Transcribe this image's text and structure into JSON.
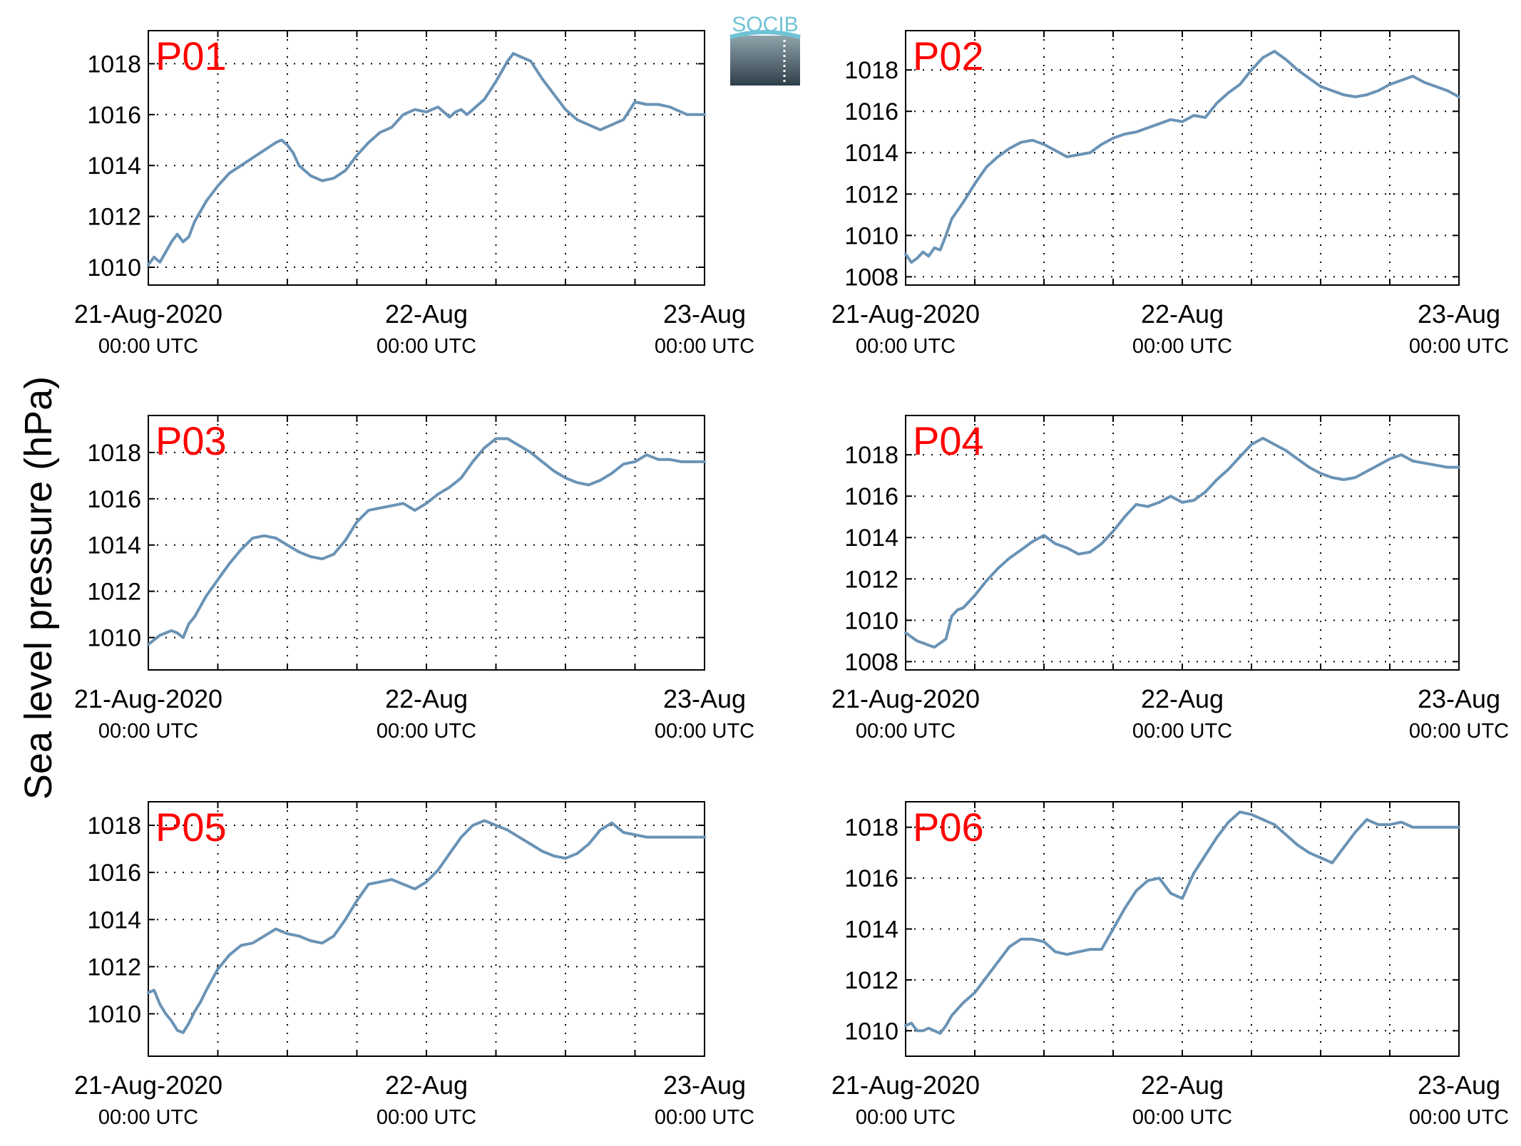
{
  "figure": {
    "ylabel": "Sea level pressure (hPa)",
    "logo_text": "SOCIB",
    "line_color": "#6a93b5",
    "panel_label_color": "#ff0000"
  },
  "chart_data": [
    {
      "type": "line",
      "label": "P01",
      "ylim": [
        1009.3,
        1019.3
      ],
      "yticks": [
        1010,
        1012,
        1014,
        1016,
        1018
      ],
      "x_major_ticks": [
        {
          "x": 0,
          "line1": "21-Aug-2020",
          "line2": "00:00 UTC"
        },
        {
          "x": 24,
          "line1": "22-Aug",
          "line2": "00:00 UTC"
        },
        {
          "x": 48,
          "line1": "23-Aug",
          "line2": "00:00 UTC"
        }
      ],
      "xlim": [
        0,
        48
      ],
      "xgrid": [
        6,
        12,
        18,
        24,
        30,
        36,
        42
      ],
      "grid": true,
      "x": [
        0,
        0.5,
        1,
        1.5,
        2,
        2.5,
        3,
        3.5,
        4,
        5,
        6,
        7,
        8,
        9,
        10,
        11,
        11.5,
        12,
        12.5,
        13,
        14,
        15,
        16,
        17,
        18,
        19,
        20,
        21,
        22,
        23,
        24,
        25,
        26,
        26.5,
        27,
        27.5,
        28,
        29,
        30,
        31,
        31.5,
        32,
        33,
        34,
        35,
        36,
        37,
        38,
        39,
        40,
        41,
        42,
        43,
        44,
        45,
        46,
        46.5,
        47,
        48
      ],
      "y": [
        1010.1,
        1010.4,
        1010.2,
        1010.6,
        1011.0,
        1011.3,
        1011.0,
        1011.2,
        1011.8,
        1012.6,
        1013.2,
        1013.7,
        1014.0,
        1014.3,
        1014.6,
        1014.9,
        1015.0,
        1014.8,
        1014.5,
        1014.0,
        1013.6,
        1013.4,
        1013.5,
        1013.8,
        1014.4,
        1014.9,
        1015.3,
        1015.5,
        1016.0,
        1016.2,
        1016.1,
        1016.3,
        1015.9,
        1016.1,
        1016.2,
        1016.0,
        1016.2,
        1016.6,
        1017.3,
        1018.1,
        1018.4,
        1018.3,
        1018.1,
        1017.4,
        1016.8,
        1016.2,
        1015.8,
        1015.6,
        1015.4,
        1015.6,
        1015.8,
        1016.5,
        1016.4,
        1016.4,
        1016.3,
        1016.1,
        1016.0,
        1016.0,
        1016.0
      ]
    },
    {
      "type": "line",
      "label": "P02",
      "ylim": [
        1007.6,
        1019.9
      ],
      "yticks": [
        1008,
        1010,
        1012,
        1014,
        1016,
        1018
      ],
      "x_major_ticks": [
        {
          "x": 0,
          "line1": "21-Aug-2020",
          "line2": "00:00 UTC"
        },
        {
          "x": 24,
          "line1": "22-Aug",
          "line2": "00:00 UTC"
        },
        {
          "x": 48,
          "line1": "23-Aug",
          "line2": "00:00 UTC"
        }
      ],
      "xlim": [
        0,
        48
      ],
      "xgrid": [
        6,
        12,
        18,
        24,
        30,
        36,
        42
      ],
      "grid": true,
      "x": [
        0,
        0.5,
        1,
        1.5,
        2,
        2.5,
        3,
        3.5,
        4,
        5,
        6,
        7,
        8,
        9,
        10,
        11,
        12,
        13,
        14,
        15,
        16,
        17,
        18,
        19,
        20,
        21,
        22,
        23,
        24,
        25,
        26,
        27,
        28,
        29,
        30,
        31,
        32,
        33,
        34,
        35,
        36,
        37,
        38,
        39,
        40,
        41,
        42,
        43,
        44,
        45,
        46,
        47,
        48
      ],
      "y": [
        1009.1,
        1008.7,
        1008.9,
        1009.2,
        1009.0,
        1009.4,
        1009.3,
        1010.0,
        1010.8,
        1011.6,
        1012.5,
        1013.3,
        1013.8,
        1014.2,
        1014.5,
        1014.6,
        1014.4,
        1014.1,
        1013.8,
        1013.9,
        1014.0,
        1014.4,
        1014.7,
        1014.9,
        1015.0,
        1015.2,
        1015.4,
        1015.6,
        1015.5,
        1015.8,
        1015.7,
        1016.4,
        1016.9,
        1017.3,
        1018.0,
        1018.6,
        1018.9,
        1018.5,
        1018.0,
        1017.6,
        1017.2,
        1017.0,
        1016.8,
        1016.7,
        1016.8,
        1017.0,
        1017.3,
        1017.5,
        1017.7,
        1017.4,
        1017.2,
        1017.0,
        1016.7
      ]
    },
    {
      "type": "line",
      "label": "P03",
      "ylim": [
        1008.6,
        1019.6
      ],
      "yticks": [
        1010,
        1012,
        1014,
        1016,
        1018
      ],
      "x_major_ticks": [
        {
          "x": 0,
          "line1": "21-Aug-2020",
          "line2": "00:00 UTC"
        },
        {
          "x": 24,
          "line1": "22-Aug",
          "line2": "00:00 UTC"
        },
        {
          "x": 48,
          "line1": "23-Aug",
          "line2": "00:00 UTC"
        }
      ],
      "xlim": [
        0,
        48
      ],
      "xgrid": [
        6,
        12,
        18,
        24,
        30,
        36,
        42
      ],
      "grid": true,
      "x": [
        0,
        0.5,
        1,
        1.5,
        2,
        2.5,
        3,
        3.5,
        4,
        5,
        6,
        7,
        8,
        9,
        10,
        11,
        12,
        13,
        14,
        15,
        16,
        17,
        18,
        19,
        20,
        21,
        22,
        23,
        24,
        25,
        26,
        27,
        28,
        29,
        30,
        31,
        32,
        33,
        34,
        35,
        36,
        37,
        38,
        39,
        40,
        41,
        42,
        43,
        44,
        45,
        46,
        47,
        48
      ],
      "y": [
        1009.7,
        1009.9,
        1010.1,
        1010.2,
        1010.3,
        1010.2,
        1010.0,
        1010.6,
        1010.9,
        1011.8,
        1012.5,
        1013.2,
        1013.8,
        1014.3,
        1014.4,
        1014.3,
        1014.0,
        1013.7,
        1013.5,
        1013.4,
        1013.6,
        1014.2,
        1015.0,
        1015.5,
        1015.6,
        1015.7,
        1015.8,
        1015.5,
        1015.8,
        1016.2,
        1016.5,
        1016.9,
        1017.6,
        1018.2,
        1018.6,
        1018.6,
        1018.3,
        1018.0,
        1017.6,
        1017.2,
        1016.9,
        1016.7,
        1016.6,
        1016.8,
        1017.1,
        1017.5,
        1017.6,
        1017.9,
        1017.7,
        1017.7,
        1017.6,
        1017.6,
        1017.6
      ]
    },
    {
      "type": "line",
      "label": "P04",
      "ylim": [
        1007.6,
        1019.9
      ],
      "yticks": [
        1008,
        1010,
        1012,
        1014,
        1016,
        1018
      ],
      "x_major_ticks": [
        {
          "x": 0,
          "line1": "21-Aug-2020",
          "line2": "00:00 UTC"
        },
        {
          "x": 24,
          "line1": "22-Aug",
          "line2": "00:00 UTC"
        },
        {
          "x": 48,
          "line1": "23-Aug",
          "line2": "00:00 UTC"
        }
      ],
      "xlim": [
        0,
        48
      ],
      "xgrid": [
        6,
        12,
        18,
        24,
        30,
        36,
        42
      ],
      "grid": true,
      "x": [
        0,
        0.5,
        1,
        1.5,
        2,
        2.5,
        3,
        3.5,
        4,
        4.5,
        5,
        6,
        7,
        8,
        9,
        10,
        11,
        12,
        13,
        14,
        15,
        16,
        17,
        18,
        19,
        20,
        21,
        22,
        23,
        24,
        25,
        26,
        27,
        28,
        29,
        30,
        31,
        32,
        33,
        34,
        35,
        36,
        37,
        38,
        39,
        40,
        41,
        42,
        43,
        44,
        45,
        46,
        47,
        48
      ],
      "y": [
        1009.4,
        1009.2,
        1009.0,
        1008.9,
        1008.8,
        1008.7,
        1008.9,
        1009.1,
        1010.2,
        1010.5,
        1010.6,
        1011.2,
        1011.9,
        1012.5,
        1013.0,
        1013.4,
        1013.8,
        1014.1,
        1013.7,
        1013.5,
        1013.2,
        1013.3,
        1013.7,
        1014.3,
        1015.0,
        1015.6,
        1015.5,
        1015.7,
        1016.0,
        1015.7,
        1015.8,
        1016.2,
        1016.8,
        1017.3,
        1017.9,
        1018.5,
        1018.8,
        1018.5,
        1018.2,
        1017.8,
        1017.4,
        1017.1,
        1016.9,
        1016.8,
        1016.9,
        1017.2,
        1017.5,
        1017.8,
        1018.0,
        1017.7,
        1017.6,
        1017.5,
        1017.4,
        1017.4
      ]
    },
    {
      "type": "line",
      "label": "P05",
      "ylim": [
        1008.2,
        1019.0
      ],
      "yticks": [
        1010,
        1012,
        1014,
        1016,
        1018
      ],
      "x_major_ticks": [
        {
          "x": 0,
          "line1": "21-Aug-2020",
          "line2": "00:00 UTC"
        },
        {
          "x": 24,
          "line1": "22-Aug",
          "line2": "00:00 UTC"
        },
        {
          "x": 48,
          "line1": "23-Aug",
          "line2": "00:00 UTC"
        }
      ],
      "xlim": [
        0,
        48
      ],
      "xgrid": [
        6,
        12,
        18,
        24,
        30,
        36,
        42
      ],
      "grid": true,
      "x": [
        0,
        0.5,
        1,
        1.5,
        2,
        2.5,
        3,
        3.5,
        4,
        4.5,
        5,
        6,
        7,
        8,
        9,
        10,
        11,
        12,
        13,
        14,
        15,
        16,
        17,
        18,
        19,
        20,
        21,
        22,
        23,
        24,
        25,
        26,
        27,
        28,
        29,
        30,
        31,
        32,
        33,
        34,
        35,
        36,
        37,
        38,
        39,
        40,
        41,
        42,
        43,
        44,
        45,
        46,
        47,
        48
      ],
      "y": [
        1010.9,
        1011.0,
        1010.4,
        1010.0,
        1009.7,
        1009.3,
        1009.2,
        1009.6,
        1010.1,
        1010.5,
        1011.0,
        1011.9,
        1012.5,
        1012.9,
        1013.0,
        1013.3,
        1013.6,
        1013.4,
        1013.3,
        1013.1,
        1013.0,
        1013.3,
        1014.0,
        1014.8,
        1015.5,
        1015.6,
        1015.7,
        1015.5,
        1015.3,
        1015.6,
        1016.1,
        1016.8,
        1017.5,
        1018.0,
        1018.2,
        1018.0,
        1017.8,
        1017.5,
        1017.2,
        1016.9,
        1016.7,
        1016.6,
        1016.8,
        1017.2,
        1017.8,
        1018.1,
        1017.7,
        1017.6,
        1017.5,
        1017.5,
        1017.5,
        1017.5,
        1017.5,
        1017.5
      ]
    },
    {
      "type": "line",
      "label": "P06",
      "ylim": [
        1009.0,
        1019.0
      ],
      "yticks": [
        1010,
        1012,
        1014,
        1016,
        1018
      ],
      "x_major_ticks": [
        {
          "x": 0,
          "line1": "21-Aug-2020",
          "line2": "00:00 UTC"
        },
        {
          "x": 24,
          "line1": "22-Aug",
          "line2": "00:00 UTC"
        },
        {
          "x": 48,
          "line1": "23-Aug",
          "line2": "00:00 UTC"
        }
      ],
      "xlim": [
        0,
        48
      ],
      "xgrid": [
        6,
        12,
        18,
        24,
        30,
        36,
        42
      ],
      "grid": true,
      "x": [
        0,
        0.5,
        1,
        1.5,
        2,
        2.5,
        3,
        3.5,
        4,
        5,
        6,
        7,
        8,
        9,
        10,
        11,
        12,
        13,
        14,
        15,
        16,
        17,
        18,
        19,
        20,
        21,
        22,
        23,
        24,
        25,
        26,
        27,
        28,
        29,
        30,
        31,
        32,
        33,
        34,
        35,
        36,
        37,
        38,
        39,
        40,
        41,
        42,
        43,
        44,
        45,
        46,
        47,
        48
      ],
      "y": [
        1010.2,
        1010.3,
        1010.0,
        1010.0,
        1010.1,
        1010.0,
        1009.9,
        1010.2,
        1010.6,
        1011.1,
        1011.5,
        1012.1,
        1012.7,
        1013.3,
        1013.6,
        1013.6,
        1013.5,
        1013.1,
        1013.0,
        1013.1,
        1013.2,
        1013.2,
        1014.0,
        1014.8,
        1015.5,
        1015.9,
        1016.0,
        1015.4,
        1015.2,
        1016.2,
        1016.9,
        1017.6,
        1018.2,
        1018.6,
        1018.5,
        1018.3,
        1018.1,
        1017.7,
        1017.3,
        1017.0,
        1016.8,
        1016.6,
        1017.2,
        1017.8,
        1018.3,
        1018.1,
        1018.1,
        1018.2,
        1018.0,
        1018.0,
        1018.0,
        1018.0,
        1018.0
      ]
    }
  ]
}
